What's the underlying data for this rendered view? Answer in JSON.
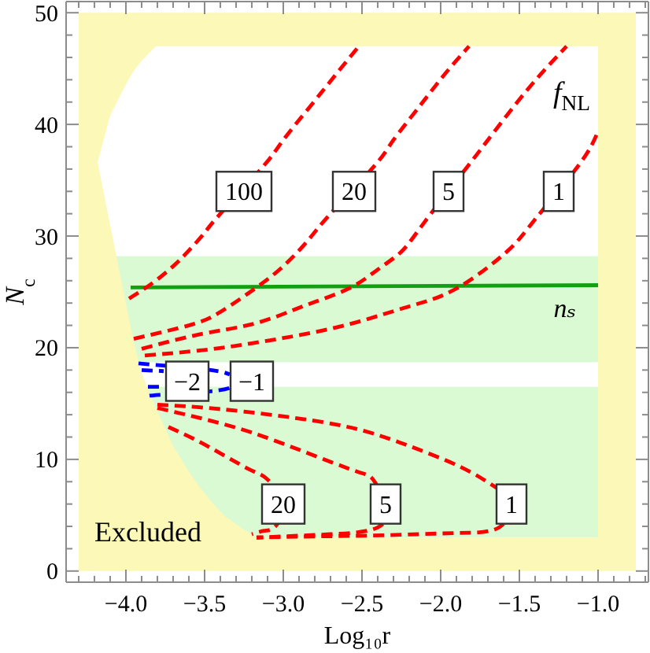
{
  "chart_data": {
    "type": "line",
    "xlabel": "Log₁₀r",
    "ylabel": "N$_{c}$",
    "xlim": [
      -4.38,
      -0.68
    ],
    "ylim": [
      -1,
      51
    ],
    "xticks": [
      {
        "value": -4.3,
        "label": null
      },
      {
        "value": -4.2,
        "label": null
      },
      {
        "value": -4.1,
        "label": null
      },
      {
        "value": -4,
        "label": "−4.0"
      },
      {
        "value": -3.9,
        "label": null
      },
      {
        "value": -3.8,
        "label": null
      },
      {
        "value": -3.7,
        "label": null
      },
      {
        "value": -3.6,
        "label": null
      },
      {
        "value": -3.5,
        "label": "−3.5"
      },
      {
        "value": -3.4,
        "label": null
      },
      {
        "value": -3.3,
        "label": null
      },
      {
        "value": -3.2,
        "label": null
      },
      {
        "value": -3.1,
        "label": null
      },
      {
        "value": -3,
        "label": "−3.0"
      },
      {
        "value": -2.9,
        "label": null
      },
      {
        "value": -2.8,
        "label": null
      },
      {
        "value": -2.7,
        "label": null
      },
      {
        "value": -2.6,
        "label": null
      },
      {
        "value": -2.5,
        "label": "−2.5"
      },
      {
        "value": -2.4,
        "label": null
      },
      {
        "value": -2.3,
        "label": null
      },
      {
        "value": -2.2,
        "label": null
      },
      {
        "value": -2.1,
        "label": null
      },
      {
        "value": -2,
        "label": "−2.0"
      },
      {
        "value": -1.9,
        "label": null
      },
      {
        "value": -1.8,
        "label": null
      },
      {
        "value": -1.7,
        "label": null
      },
      {
        "value": -1.6,
        "label": null
      },
      {
        "value": -1.5,
        "label": "−1.5"
      },
      {
        "value": -1.4,
        "label": null
      },
      {
        "value": -1.3,
        "label": null
      },
      {
        "value": -1.2,
        "label": null
      },
      {
        "value": -1.1,
        "label": null
      },
      {
        "value": -1,
        "label": "−1.0"
      },
      {
        "value": -0.9,
        "label": null
      },
      {
        "value": -0.8,
        "label": null
      },
      {
        "value": -0.7,
        "label": null
      }
    ],
    "yticks": [
      0,
      {
        "value": 2,
        "label": null
      },
      {
        "value": 4,
        "label": null
      },
      {
        "value": 6,
        "label": null
      },
      {
        "value": 8,
        "label": null
      },
      10,
      {
        "value": 12,
        "label": null
      },
      {
        "value": 14,
        "label": null
      },
      {
        "value": 16,
        "label": null
      },
      {
        "value": 18,
        "label": null
      },
      20,
      {
        "value": 22,
        "label": null
      },
      {
        "value": 24,
        "label": null
      },
      {
        "value": 26,
        "label": null
      },
      {
        "value": 28,
        "label": null
      },
      30,
      {
        "value": 32,
        "label": null
      },
      {
        "value": 34,
        "label": null
      },
      {
        "value": 36,
        "label": null
      },
      {
        "value": 38,
        "label": null
      },
      40,
      {
        "value": 42,
        "label": null
      },
      {
        "value": 44,
        "label": null
      },
      {
        "value": 46,
        "label": null
      },
      {
        "value": 48,
        "label": null
      },
      50
    ],
    "bands": [
      {
        "axis": "y",
        "from": 18.7,
        "to": 28.2,
        "label": "nₛ",
        "color": "#d9fad3"
      },
      {
        "axis": "y",
        "from": 3,
        "to": 16.5,
        "color": "#d9fad3"
      }
    ],
    "series": [
      {
        "type": "area",
        "color": "#fcf8b8",
        "x": [
          -4.3,
          -0.76
        ],
        "values": [
          50,
          50
        ]
      },
      {
        "type": "area",
        "color": "#ffffff",
        "x": [
          -4.18,
          -4.1,
          -4.0,
          -3.95,
          -3.9,
          -3.81,
          -1.0
        ],
        "values": [
          36.6,
          40.8,
          43.6,
          44.8,
          45.7,
          47,
          47
        ]
      },
      {
        "type": "area",
        "name": "Excluded",
        "color": "#fcf8b8",
        "x": [
          -4.18,
          -4.1,
          -4.0,
          -3.95,
          -3.9,
          -3.81,
          -3.7,
          -3.6,
          -3.53,
          -3.45,
          -3.37,
          -3.25,
          -3.17,
          -1.0
        ],
        "values": [
          36.6,
          31.0,
          23.9,
          20.5,
          17.7,
          14.6,
          11.2,
          8.9,
          7.5,
          6.1,
          4.9,
          3.7,
          3.0,
          3.0
        ]
      },
      {
        "color": "#12a012",
        "line_style": "solid",
        "x": [
          -3.97,
          -1.0
        ],
        "values": [
          25.4,
          25.6
        ]
      },
      {
        "color": "#ff0000",
        "line_style": "dashed",
        "x": [
          -3.98,
          -3.83,
          -3.7,
          -3.6,
          -3.5,
          -3.4,
          -3.13,
          -3.0,
          -2.83,
          -2.67,
          -2.52
        ],
        "values": [
          24.4,
          25.8,
          27.3,
          28.7,
          30.3,
          32.0,
          36.2,
          38.6,
          41.6,
          44.4,
          47
        ]
      },
      {
        "color": "#ff0000",
        "line_style": "dashed",
        "x": [
          -3.95,
          -3.6,
          -3.4,
          -3.17,
          -3.0,
          -2.85,
          -2.7,
          -2.42,
          -2.3,
          -2.13,
          -1.98,
          -1.82
        ],
        "values": [
          20.8,
          22.0,
          23.2,
          25.4,
          27.3,
          29.5,
          32.0,
          36.3,
          38.6,
          41.7,
          44.4,
          47
        ]
      },
      {
        "color": "#ff0000",
        "line_style": "dashed",
        "x": [
          -3.9,
          -3.53,
          -3.2,
          -2.95,
          -2.8,
          -2.57,
          -2.4,
          -2.25,
          -2.1,
          -1.82,
          -1.7,
          -1.53,
          -1.37,
          -1.2
        ],
        "values": [
          19.9,
          21.2,
          22.1,
          23.3,
          24.1,
          25.4,
          27.0,
          28.6,
          31.3,
          36.4,
          38.6,
          41.7,
          44.4,
          47
        ]
      },
      {
        "color": "#ff0000",
        "line_style": "dashed",
        "x": [
          -3.88,
          -3.5,
          -3.2,
          -2.87,
          -2.53,
          -2.2,
          -1.9,
          -1.58,
          -1.4,
          -1.12,
          -1.0
        ],
        "values": [
          19.3,
          19.8,
          20.4,
          21.2,
          22.3,
          23.7,
          25.3,
          28.6,
          31.5,
          36.4,
          39.4
        ]
      },
      {
        "color": "#ff0000",
        "line_style": "dashed",
        "x": [
          -3.8,
          -3.4,
          -2.87,
          -2.5,
          -2.2,
          -1.87,
          -1.65,
          -1.55,
          -1.63,
          -1.9,
          -2.37,
          -2.8,
          -3.17
        ],
        "values": [
          14.9,
          14.5,
          13.6,
          12.6,
          11.2,
          9.3,
          7.5,
          6.0,
          3.9,
          3.4,
          3.2,
          3.1,
          3.0
        ]
      },
      {
        "color": "#ff0000",
        "line_style": "dashed",
        "x": [
          -3.8,
          -3.5,
          -3.2,
          -2.87,
          -2.53,
          -2.43,
          -2.35,
          -2.4,
          -2.7,
          -3.0,
          -3.17
        ],
        "values": [
          14.6,
          13.6,
          12.4,
          10.7,
          8.9,
          8.2,
          6.0,
          3.9,
          3.3,
          3.1,
          3.0
        ]
      },
      {
        "color": "#ff0000",
        "line_style": "dashed",
        "x": [
          -3.73,
          -3.55,
          -3.37,
          -3.2,
          -3.1,
          -3.0,
          -3.05,
          -3.12,
          -3.2
        ],
        "values": [
          12.9,
          11.7,
          10.3,
          9.0,
          8.2,
          6.0,
          4.0,
          3.6,
          3.3
        ]
      },
      {
        "color": "#0000ff",
        "line_style": "dashed",
        "x": [
          -3.92,
          -3.76,
          -3.46,
          -3.34
        ],
        "values": [
          18.6,
          18.4,
          18.0,
          17.6
        ]
      },
      {
        "color": "#0000ff",
        "line_style": "dashed",
        "x": [
          -3.85,
          -3.76,
          -3.46,
          -3.34
        ],
        "values": [
          15.7,
          15.8,
          16.1,
          16.4
        ]
      },
      {
        "color": "#0000ff",
        "line_style": "dashed",
        "x": [
          -3.9,
          -3.76
        ],
        "values": [
          18.0,
          17.9
        ]
      },
      {
        "color": "#0000ff",
        "line_style": "dashed",
        "x": [
          -3.86,
          -3.76
        ],
        "values": [
          16.5,
          16.5
        ]
      }
    ],
    "annotations": [
      "f$_{NL}$",
      {
        "text": "100",
        "x": -3.25,
        "y": 34
      },
      {
        "text": "20",
        "x": -2.55,
        "y": 34
      },
      {
        "text": "5",
        "x": -1.95,
        "y": 34
      },
      {
        "text": "1",
        "x": -1.25,
        "y": 34
      },
      {
        "text": "−2",
        "x": -3.61,
        "y": 17
      },
      {
        "text": "−1",
        "x": -3.2,
        "y": 17
      },
      {
        "text": "20",
        "x": -3.0,
        "y": 6
      },
      {
        "text": "5",
        "x": -2.35,
        "y": 6
      },
      {
        "text": "1",
        "x": -1.55,
        "y": 6
      }
    ]
  }
}
